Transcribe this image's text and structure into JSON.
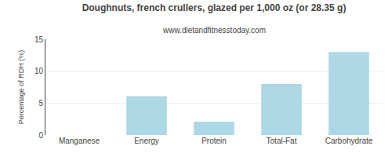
{
  "chart_data": {
    "type": "bar",
    "title": "Doughnuts, french crullers, glazed per 1,000 oz (or 28.35 g)",
    "subtitle": "www.dietandfitnesstoday.com",
    "categories": [
      "Manganese",
      "Energy",
      "Protein",
      "Total-Fat",
      "Carbohydrate"
    ],
    "values": [
      0.0,
      6.1,
      2.1,
      8.0,
      13.0
    ],
    "color": "#add8e6",
    "ylabel": "Percentage of RDH (%)",
    "ylim": [
      0,
      15
    ],
    "yticks": [
      0,
      5,
      10,
      15
    ],
    "grid": true
  }
}
